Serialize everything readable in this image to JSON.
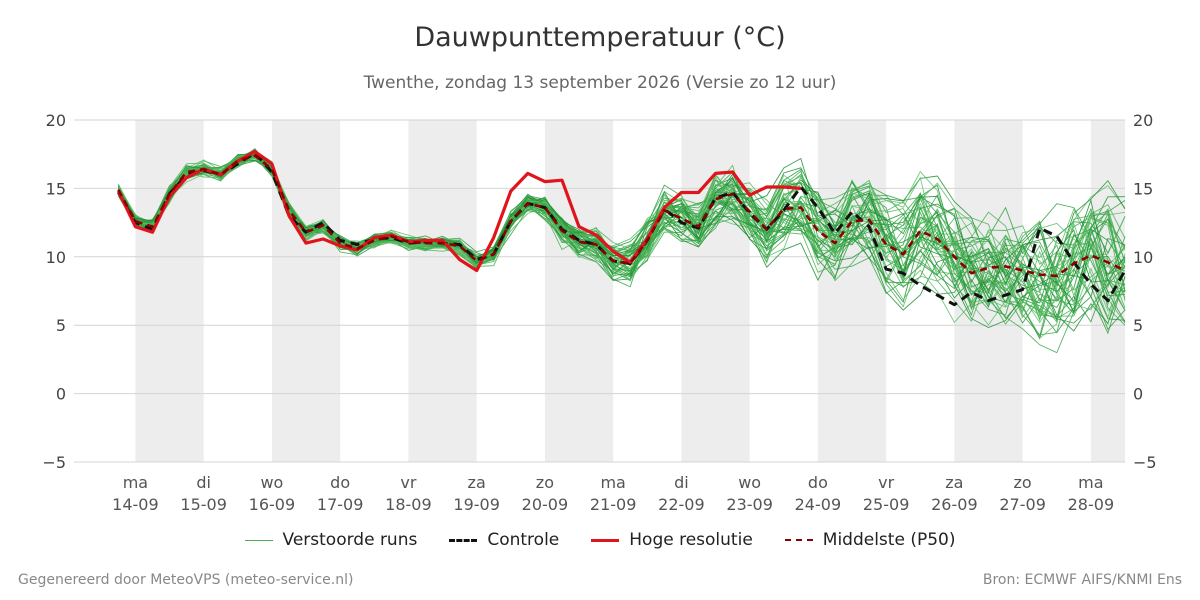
{
  "title": "Dauwpunttemperatuur (°C)",
  "subtitle": "Twenthe, zondag 13 september 2026 (Versie zo 12 uur)",
  "footer_left": "Gegenereerd door MeteoVPS (meteo-service.nl)",
  "footer_right": "Bron: ECMWF AIFS/KNMI Ens",
  "legend": [
    {
      "label": "Verstoorde runs",
      "color": "#4caf50",
      "style": "thin"
    },
    {
      "label": "Controle",
      "color": "#111111",
      "style": "dashed"
    },
    {
      "label": "Hoge resolutie",
      "color": "#e0141b",
      "style": "solid"
    },
    {
      "label": "Middelste (P50)",
      "color": "#8b0000",
      "style": "dashed"
    }
  ],
  "chart_data": {
    "type": "line",
    "x_unit": "day index from 14-09 (ma)",
    "xlim": [
      -0.9,
      14.5
    ],
    "ylim": [
      -5,
      20
    ],
    "y_ticks": [
      20,
      15,
      10,
      5,
      0,
      -5
    ],
    "y_tick_labels": [
      "20",
      "15",
      "10",
      "5",
      "0",
      "−5"
    ],
    "day_labels": [
      {
        "day": "ma",
        "date": "14-09"
      },
      {
        "day": "di",
        "date": "15-09"
      },
      {
        "day": "wo",
        "date": "16-09"
      },
      {
        "day": "do",
        "date": "17-09"
      },
      {
        "day": "vr",
        "date": "18-09"
      },
      {
        "day": "za",
        "date": "19-09"
      },
      {
        "day": "zo",
        "date": "20-09"
      },
      {
        "day": "ma",
        "date": "21-09"
      },
      {
        "day": "di",
        "date": "22-09"
      },
      {
        "day": "wo",
        "date": "23-09"
      },
      {
        "day": "do",
        "date": "24-09"
      },
      {
        "day": "vr",
        "date": "25-09"
      },
      {
        "day": "za",
        "date": "26-09"
      },
      {
        "day": "zo",
        "date": "27-09"
      },
      {
        "day": "ma",
        "date": "28-09"
      }
    ],
    "shaded_days": [
      0,
      2,
      4,
      6,
      8,
      10,
      12,
      14
    ],
    "grid": true,
    "legend_position": "bottom",
    "ensemble_member_count": 50,
    "series": [
      {
        "name": "Controle",
        "x": [
          -0.25,
          0,
          0.25,
          0.5,
          0.75,
          1,
          1.25,
          1.5,
          1.75,
          2,
          2.25,
          2.5,
          2.75,
          3,
          3.25,
          3.5,
          3.75,
          4,
          4.25,
          4.5,
          4.75,
          5,
          5.25,
          5.5,
          5.75,
          6,
          6.25,
          6.5,
          6.75,
          7,
          7.25,
          7.5,
          7.75,
          8,
          8.25,
          8.5,
          8.75,
          9,
          9.25,
          9.5,
          9.75,
          10,
          10.25,
          10.5,
          10.75,
          11,
          11.25,
          11.5,
          11.75,
          12,
          12.25,
          12.5,
          12.75,
          13,
          13.25,
          13.5,
          13.75,
          14,
          14.25,
          14.5
        ],
        "y": [
          14.7,
          12.5,
          12.0,
          14.6,
          16.0,
          16.3,
          16.0,
          16.8,
          17.6,
          16.2,
          13.0,
          11.8,
          12.5,
          11.2,
          10.9,
          11.3,
          11.4,
          11.0,
          11.1,
          11.0,
          10.9,
          9.8,
          10.2,
          12.6,
          13.9,
          13.6,
          12.0,
          11.2,
          10.9,
          9.7,
          9.5,
          11.2,
          13.5,
          12.5,
          12.1,
          14.3,
          14.7,
          13.2,
          12.0,
          13.4,
          15.1,
          13.6,
          11.7,
          13.3,
          12.2,
          9.1,
          8.8,
          7.9,
          7.2,
          6.5,
          7.4,
          6.8,
          7.2,
          7.6,
          12.1,
          11.5,
          9.6,
          8.0,
          6.8,
          9.0
        ]
      },
      {
        "name": "Hoge resolutie",
        "x": [
          -0.25,
          0,
          0.25,
          0.5,
          0.75,
          1,
          1.25,
          1.5,
          1.75,
          2,
          2.25,
          2.5,
          2.75,
          3,
          3.25,
          3.5,
          3.75,
          4,
          4.25,
          4.5,
          4.75,
          5,
          5.25,
          5.5,
          5.75,
          6,
          6.25,
          6.5,
          6.75,
          7,
          7.25,
          7.5,
          7.75,
          8,
          8.25,
          8.5,
          8.75,
          9,
          9.25,
          9.5,
          9.75
        ],
        "y": [
          14.8,
          12.2,
          11.8,
          14.4,
          15.8,
          16.4,
          16.0,
          17.0,
          17.7,
          16.8,
          13.0,
          11.0,
          11.3,
          10.8,
          10.5,
          11.4,
          11.6,
          11.1,
          11.2,
          11.2,
          9.8,
          9.0,
          11.4,
          14.8,
          16.1,
          15.5,
          15.6,
          12.2,
          11.6,
          10.4,
          9.6,
          11.3,
          13.6,
          14.7,
          14.7,
          16.1,
          16.2,
          14.5,
          15.1,
          15.1,
          15.0
        ]
      },
      {
        "name": "Middelste (P50)",
        "x": [
          -0.25,
          0,
          0.25,
          0.5,
          0.75,
          1,
          1.25,
          1.5,
          1.75,
          2,
          2.25,
          2.5,
          2.75,
          3,
          3.25,
          3.5,
          3.75,
          4,
          4.25,
          4.5,
          4.75,
          5,
          5.25,
          5.5,
          5.75,
          6,
          6.25,
          6.5,
          6.75,
          7,
          7.25,
          7.5,
          7.75,
          8,
          8.25,
          8.5,
          8.75,
          9,
          9.25,
          9.5,
          9.75,
          10,
          10.25,
          10.5,
          10.75,
          11,
          11.25,
          11.5,
          11.75,
          12,
          12.25,
          12.5,
          12.75,
          13,
          13.25,
          13.5,
          13.75,
          14,
          14.25,
          14.5
        ],
        "y": [
          14.9,
          12.6,
          12.2,
          14.6,
          16.2,
          16.4,
          16.0,
          17.0,
          17.4,
          16.4,
          13.4,
          11.8,
          12.3,
          11.0,
          10.6,
          11.2,
          11.5,
          11.1,
          11.0,
          11.0,
          10.8,
          9.7,
          10.2,
          12.6,
          13.9,
          13.6,
          11.9,
          11.1,
          10.9,
          9.7,
          9.5,
          11.2,
          13.4,
          12.8,
          12.2,
          14.2,
          14.6,
          13.3,
          12.0,
          13.5,
          13.6,
          11.9,
          11.0,
          12.6,
          12.7,
          10.9,
          10.2,
          11.9,
          11.3,
          10.0,
          8.8,
          9.2,
          9.3,
          9.0,
          8.7,
          8.6,
          9.5,
          10.1,
          9.6,
          9.0
        ]
      }
    ]
  }
}
